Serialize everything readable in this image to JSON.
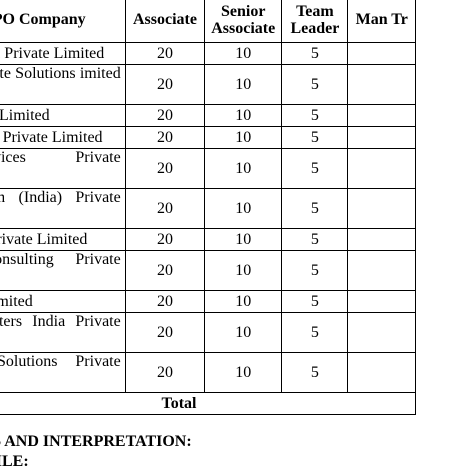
{
  "table": {
    "headers": {
      "company": "BPO Company",
      "associate": "Associate",
      "senior_associate": "Senior Associate",
      "team_leader": "Team Leader",
      "manager_trainer": "Man Tr"
    },
    "rows": [
      {
        "company": "Infotech Private Limited",
        "associate": "20",
        "senior_associate": "10",
        "team_leader": "5"
      },
      {
        "company": "Corporate Solutions imited",
        "associate": "20",
        "senior_associate": "10",
        "team_leader": "5"
      },
      {
        "company": "nfotech Limited",
        "associate": "20",
        "senior_associate": "10",
        "team_leader": "5"
      },
      {
        "company": "olutions Private Limited",
        "associate": "20",
        "senior_associate": "10",
        "team_leader": "5"
      },
      {
        "company": "Teleservices Private",
        "associate": "20",
        "senior_associate": "10",
        "team_leader": "5"
      },
      {
        "company": "vice.com (India) Private",
        "associate": "20",
        "senior_associate": "10",
        "team_leader": "5"
      },
      {
        "company": "Serve Private Limited",
        "associate": "20",
        "senior_associate": "10",
        "team_leader": "5"
      },
      {
        "company": "IT Consulting Private",
        "associate": "20",
        "senior_associate": "10",
        "team_leader": "5"
      },
      {
        "company": "ivate Limited",
        "associate": "20",
        "senior_associate": "10",
        "team_leader": "5"
      },
      {
        "company": "all Centers India Private",
        "associate": "20",
        "senior_associate": "10",
        "team_leader": "5"
      },
      {
        "company": "KPO Solutions Private",
        "associate": "20",
        "senior_associate": "10",
        "team_leader": "5"
      }
    ],
    "total_label": "Total"
  },
  "footer": {
    "line1": "IS AND INTERPRETATION:",
    "line2": "FILE:"
  }
}
